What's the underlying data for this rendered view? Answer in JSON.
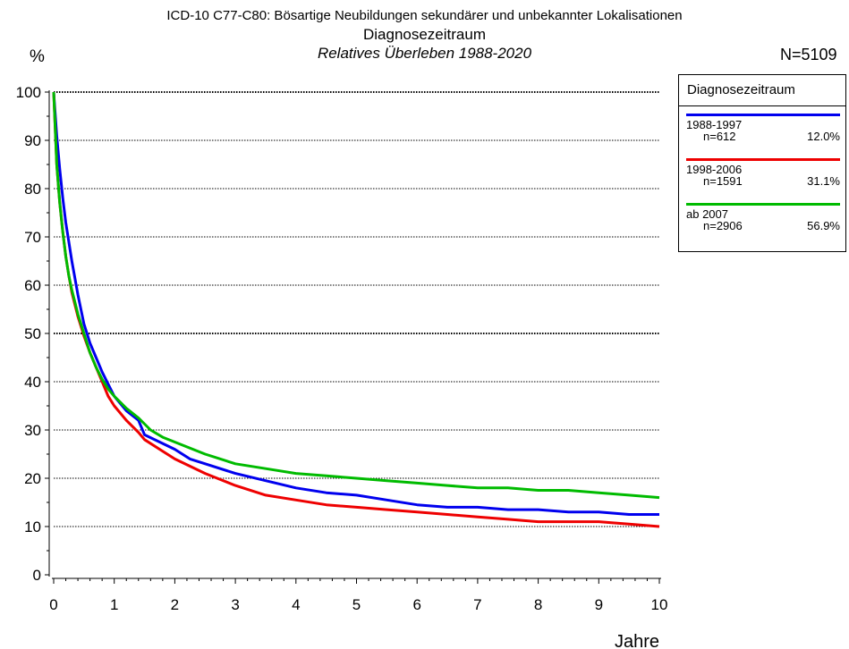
{
  "chart_data": {
    "type": "line",
    "title": "ICD-10 C77-C80: Bösartige Neubildungen sekundärer und unbekannter Lokalisationen",
    "subtitle": "Diagnosezeitraum",
    "subtitle2": "Relatives Überleben 1988-2020",
    "total": "N=5109",
    "ylabel": "%",
    "xlabel": "Jahre",
    "xlim": [
      0,
      10
    ],
    "ylim": [
      0,
      100
    ],
    "xticks": [
      0,
      1,
      2,
      3,
      4,
      5,
      6,
      7,
      8,
      9,
      10
    ],
    "yticks": [
      0,
      10,
      20,
      30,
      40,
      50,
      60,
      70,
      80,
      90,
      100
    ],
    "grid": "horizontal dotted",
    "legend_position": "top-right",
    "legend_title": "Diagnosezeitraum",
    "series": [
      {
        "name": "1988-1997",
        "n": "n=612",
        "share": "12.0%",
        "color": "#0000ee",
        "x": [
          0,
          0.05,
          0.1,
          0.15,
          0.2,
          0.25,
          0.3,
          0.35,
          0.4,
          0.5,
          0.6,
          0.7,
          0.8,
          0.9,
          1.0,
          1.2,
          1.4,
          1.5,
          1.75,
          2.0,
          2.25,
          2.5,
          3.0,
          3.5,
          4.0,
          4.5,
          5.0,
          5.5,
          6.0,
          6.5,
          7.0,
          7.5,
          8.0,
          8.5,
          9.0,
          9.5,
          10.0
        ],
        "y": [
          100,
          91,
          84,
          78,
          73,
          69,
          65,
          61.5,
          58,
          52,
          48,
          45,
          42,
          39.5,
          37,
          34,
          32,
          29,
          27.5,
          26,
          24,
          23,
          21,
          19.5,
          18,
          17,
          16.5,
          15.5,
          14.5,
          14,
          14,
          13.5,
          13.5,
          13,
          13,
          12.5,
          12.5
        ]
      },
      {
        "name": "1998-2006",
        "n": "n=1591",
        "share": "31.1%",
        "color": "#ee0000",
        "x": [
          0,
          0.05,
          0.1,
          0.15,
          0.2,
          0.25,
          0.3,
          0.4,
          0.5,
          0.6,
          0.7,
          0.8,
          0.9,
          1.0,
          1.2,
          1.4,
          1.5,
          1.75,
          2.0,
          2.5,
          3.0,
          3.5,
          4.0,
          4.5,
          5.0,
          5.5,
          6.0,
          6.5,
          7.0,
          7.5,
          8.0,
          8.5,
          9.0,
          9.5,
          10.0
        ],
        "y": [
          100,
          85,
          77,
          71,
          66,
          62,
          58.5,
          53.5,
          49.5,
          46,
          43,
          40,
          37,
          35,
          32,
          29.5,
          28,
          26,
          24,
          21,
          18.5,
          16.5,
          15.5,
          14.5,
          14,
          13.5,
          13,
          12.5,
          12,
          11.5,
          11,
          11,
          11,
          10.5,
          10
        ]
      },
      {
        "name": "ab 2007",
        "n": "n=2906",
        "share": "56.9%",
        "color": "#00bb00",
        "x": [
          0,
          0.05,
          0.1,
          0.15,
          0.2,
          0.25,
          0.3,
          0.4,
          0.5,
          0.6,
          0.7,
          0.8,
          0.9,
          1.0,
          1.2,
          1.4,
          1.6,
          1.8,
          2.0,
          2.5,
          3.0,
          3.5,
          4.0,
          4.5,
          5.0,
          5.5,
          6.0,
          6.5,
          7.0,
          7.5,
          8.0,
          8.5,
          9.0,
          9.5,
          10.0
        ],
        "y": [
          100,
          85,
          77,
          71,
          66,
          62,
          59,
          54,
          50,
          46,
          43,
          40.5,
          38.5,
          37,
          34.5,
          32.5,
          30,
          28.5,
          27.5,
          25,
          23,
          22,
          21,
          20.5,
          20,
          19.5,
          19,
          18.5,
          18,
          18,
          17.5,
          17.5,
          17,
          16.5,
          16
        ]
      }
    ]
  }
}
